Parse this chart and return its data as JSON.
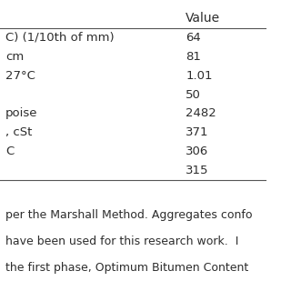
{
  "col_header": "Value",
  "rows": [
    {
      "left": "C) (1/10th of mm)",
      "right": "64"
    },
    {
      "left": "cm",
      "right": "81"
    },
    {
      "left": "27°C",
      "right": "1.01"
    },
    {
      "left": "",
      "right": "50"
    },
    {
      "left": "poise",
      "right": "2482"
    },
    {
      "left": ", cSt",
      "right": "371"
    },
    {
      "left": "C",
      "right": "306"
    },
    {
      "left": "",
      "right": "315"
    }
  ],
  "footer_lines": [
    "per the Marshall Method. Aggregates confo",
    "have been used for this research work.  I",
    "the first phase, Optimum Bitumen Content"
  ],
  "bg_color": "#ffffff",
  "text_color": "#2d2d2d",
  "line_color": "#555555",
  "font_size": 9.5,
  "header_font_size": 10,
  "footer_font_size": 9.0
}
